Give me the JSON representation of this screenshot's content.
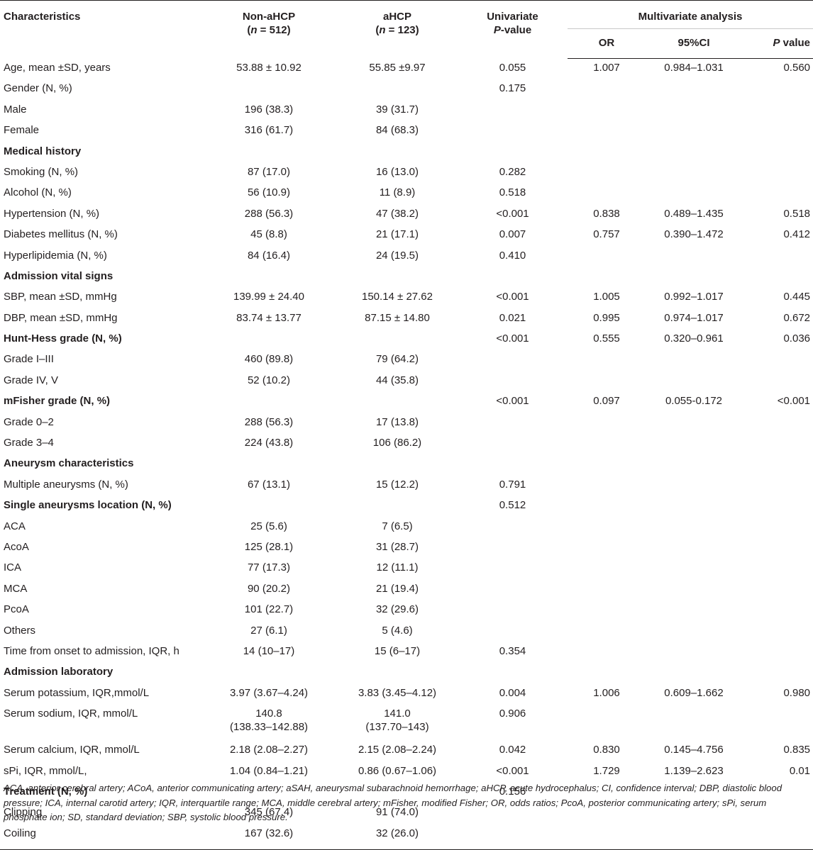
{
  "header": {
    "characteristics": "Characteristics",
    "non_ahcp": "Non-aHCP",
    "non_ahcp_n_label": "n",
    "non_ahcp_n_value": " = 512)",
    "ahcp": "aHCP",
    "ahcp_n_label": "n",
    "ahcp_n_value": " = 123)",
    "open_paren": "(",
    "univariate": "Univariate",
    "univariate_p": "P",
    "univariate_value": "-value",
    "multivariate": "Multivariate analysis",
    "or": "OR",
    "ci": "95%CI",
    "p_italic": "P",
    "p_value": " value"
  },
  "rows": [
    {
      "label": "Age, mean ±SD, years",
      "non": "53.88 ± 10.92",
      "ahcp": "55.85 ±9.97",
      "p": "0.055",
      "or": "1.007",
      "ci": "0.984–1.031",
      "mp": "0.560"
    },
    {
      "label": "Gender (N, %)",
      "non": "",
      "ahcp": "",
      "p": "0.175",
      "or": "",
      "ci": "",
      "mp": ""
    },
    {
      "label": "Male",
      "non": "196 (38.3)",
      "ahcp": "39 (31.7)",
      "p": "",
      "or": "",
      "ci": "",
      "mp": ""
    },
    {
      "label": "Female",
      "non": "316 (61.7)",
      "ahcp": "84 (68.3)",
      "p": "",
      "or": "",
      "ci": "",
      "mp": ""
    },
    {
      "label": "Medical history",
      "section": true,
      "non": "",
      "ahcp": "",
      "p": "",
      "or": "",
      "ci": "",
      "mp": ""
    },
    {
      "label": "Smoking (N, %)",
      "non": "87 (17.0)",
      "ahcp": "16 (13.0)",
      "p": "0.282",
      "or": "",
      "ci": "",
      "mp": ""
    },
    {
      "label": "Alcohol (N, %)",
      "non": "56 (10.9)",
      "ahcp": "11 (8.9)",
      "p": "0.518",
      "or": "",
      "ci": "",
      "mp": ""
    },
    {
      "label": "Hypertension (N, %)",
      "non": "288 (56.3)",
      "ahcp": "47 (38.2)",
      "p": "<0.001",
      "or": "0.838",
      "ci": "0.489–1.435",
      "mp": "0.518"
    },
    {
      "label": "Diabetes mellitus (N, %)",
      "non": "45 (8.8)",
      "ahcp": "21 (17.1)",
      "p": "0.007",
      "or": "0.757",
      "ci": "0.390–1.472",
      "mp": "0.412"
    },
    {
      "label": "Hyperlipidemia (N, %)",
      "non": "84 (16.4)",
      "ahcp": "24 (19.5)",
      "p": "0.410",
      "or": "",
      "ci": "",
      "mp": ""
    },
    {
      "label": "Admission vital signs",
      "section": true,
      "non": "",
      "ahcp": "",
      "p": "",
      "or": "",
      "ci": "",
      "mp": ""
    },
    {
      "label": "SBP, mean ±SD, mmHg",
      "non": "139.99 ± 24.40",
      "ahcp": "150.14 ± 27.62",
      "p": "<0.001",
      "or": "1.005",
      "ci": "0.992–1.017",
      "mp": "0.445"
    },
    {
      "label": "DBP, mean ±SD, mmHg",
      "non": "83.74 ± 13.77",
      "ahcp": "87.15 ± 14.80",
      "p": "0.021",
      "or": "0.995",
      "ci": "0.974–1.017",
      "mp": "0.672"
    },
    {
      "label": "Hunt-Hess grade (N, %)",
      "section": true,
      "non": "",
      "ahcp": "",
      "p": "<0.001",
      "or": "0.555",
      "ci": "0.320–0.961",
      "mp": "0.036"
    },
    {
      "label": "Grade I–III",
      "non": "460 (89.8)",
      "ahcp": "79 (64.2)",
      "p": "",
      "or": "",
      "ci": "",
      "mp": ""
    },
    {
      "label": "Grade IV, V",
      "non": "52 (10.2)",
      "ahcp": "44 (35.8)",
      "p": "",
      "or": "",
      "ci": "",
      "mp": ""
    },
    {
      "label": "mFisher grade (N, %)",
      "section": true,
      "non": "",
      "ahcp": "",
      "p": "<0.001",
      "or": "0.097",
      "ci": "0.055-0.172",
      "mp": "<0.001"
    },
    {
      "label": "Grade 0–2",
      "non": "288 (56.3)",
      "ahcp": "17 (13.8)",
      "p": "",
      "or": "",
      "ci": "",
      "mp": ""
    },
    {
      "label": "Grade 3–4",
      "non": "224 (43.8)",
      "ahcp": "106 (86.2)",
      "p": "",
      "or": "",
      "ci": "",
      "mp": ""
    },
    {
      "label": "Aneurysm characteristics",
      "section": true,
      "non": "",
      "ahcp": "",
      "p": "",
      "or": "",
      "ci": "",
      "mp": ""
    },
    {
      "label": "Multiple aneurysms (N, %)",
      "non": "67 (13.1)",
      "ahcp": "15 (12.2)",
      "p": "0.791",
      "or": "",
      "ci": "",
      "mp": ""
    },
    {
      "label": "Single aneurysms location (N, %)",
      "section": true,
      "non": "",
      "ahcp": "",
      "p": "0.512",
      "or": "",
      "ci": "",
      "mp": ""
    },
    {
      "label": "ACA",
      "non": "25 (5.6)",
      "ahcp": "7 (6.5)",
      "p": "",
      "or": "",
      "ci": "",
      "mp": ""
    },
    {
      "label": "AcoA",
      "non": "125 (28.1)",
      "ahcp": "31 (28.7)",
      "p": "",
      "or": "",
      "ci": "",
      "mp": ""
    },
    {
      "label": "ICA",
      "non": "77 (17.3)",
      "ahcp": "12 (11.1)",
      "p": "",
      "or": "",
      "ci": "",
      "mp": ""
    },
    {
      "label": "MCA",
      "non": "90 (20.2)",
      "ahcp": "21 (19.4)",
      "p": "",
      "or": "",
      "ci": "",
      "mp": ""
    },
    {
      "label": "PcoA",
      "non": "101 (22.7)",
      "ahcp": "32 (29.6)",
      "p": "",
      "or": "",
      "ci": "",
      "mp": ""
    },
    {
      "label": "Others",
      "non": "27 (6.1)",
      "ahcp": "5 (4.6)",
      "p": "",
      "or": "",
      "ci": "",
      "mp": ""
    },
    {
      "label": "Time from onset to admission, IQR, h",
      "non": "14 (10–17)",
      "ahcp": "15 (6–17)",
      "p": "0.354",
      "or": "",
      "ci": "",
      "mp": ""
    },
    {
      "label": "Admission laboratory",
      "section": true,
      "non": "",
      "ahcp": "",
      "p": "",
      "or": "",
      "ci": "",
      "mp": ""
    },
    {
      "label": "Serum potassium, IQR,mmol/L",
      "non": "3.97 (3.67–4.24)",
      "ahcp": "3.83 (3.45–4.12)",
      "p": "0.004",
      "or": "1.006",
      "ci": "0.609–1.662",
      "mp": "0.980"
    },
    {
      "label": "Serum sodium, IQR, mmol/L",
      "tall": true,
      "non": "140.8",
      "non2": "(138.33–142.88)",
      "ahcp": "141.0",
      "ahcp2": "(137.70–143)",
      "p": "0.906",
      "or": "",
      "ci": "",
      "mp": ""
    },
    {
      "label": "Serum calcium, IQR, mmol/L",
      "non": "2.18 (2.08–2.27)",
      "ahcp": "2.15 (2.08–2.24)",
      "p": "0.042",
      "or": "0.830",
      "ci": "0.145–4.756",
      "mp": "0.835"
    },
    {
      "label": "sPi, IQR, mmol/L,",
      "non": "1.04 (0.84–1.21)",
      "ahcp": "0.86 (0.67–1.06)",
      "p": "<0.001",
      "or": "1.729",
      "ci": "1.139–2.623",
      "mp": "0.01"
    },
    {
      "label": "Treatment (N, %)",
      "section": true,
      "non": "",
      "ahcp": "",
      "p": "0.156",
      "or": "",
      "ci": "",
      "mp": ""
    },
    {
      "label": "Clipping",
      "non": "345 (67.4)",
      "ahcp": "91 (74.0)",
      "p": "",
      "or": "",
      "ci": "",
      "mp": ""
    },
    {
      "label": "Coiling",
      "last": true,
      "non": "167 (32.6)",
      "ahcp": "32 (26.0)",
      "p": "",
      "or": "",
      "ci": "",
      "mp": ""
    }
  ],
  "footnote": "ACA, anterior cerebral artery; ACoA, anterior communicating artery; aSAH, aneurysmal subarachnoid hemorrhage; aHCP, acute hydrocephalus; CI, confidence interval; DBP, diastolic blood pressure; ICA, internal carotid artery; IQR, interquartile range; MCA, middle cerebral artery; mFisher, modified Fisher; OR, odds ratios; PcoA, posterior communicating artery; sPi, serum phosphate ion; SD, standard deviation; SBP, systolic blood pressure."
}
